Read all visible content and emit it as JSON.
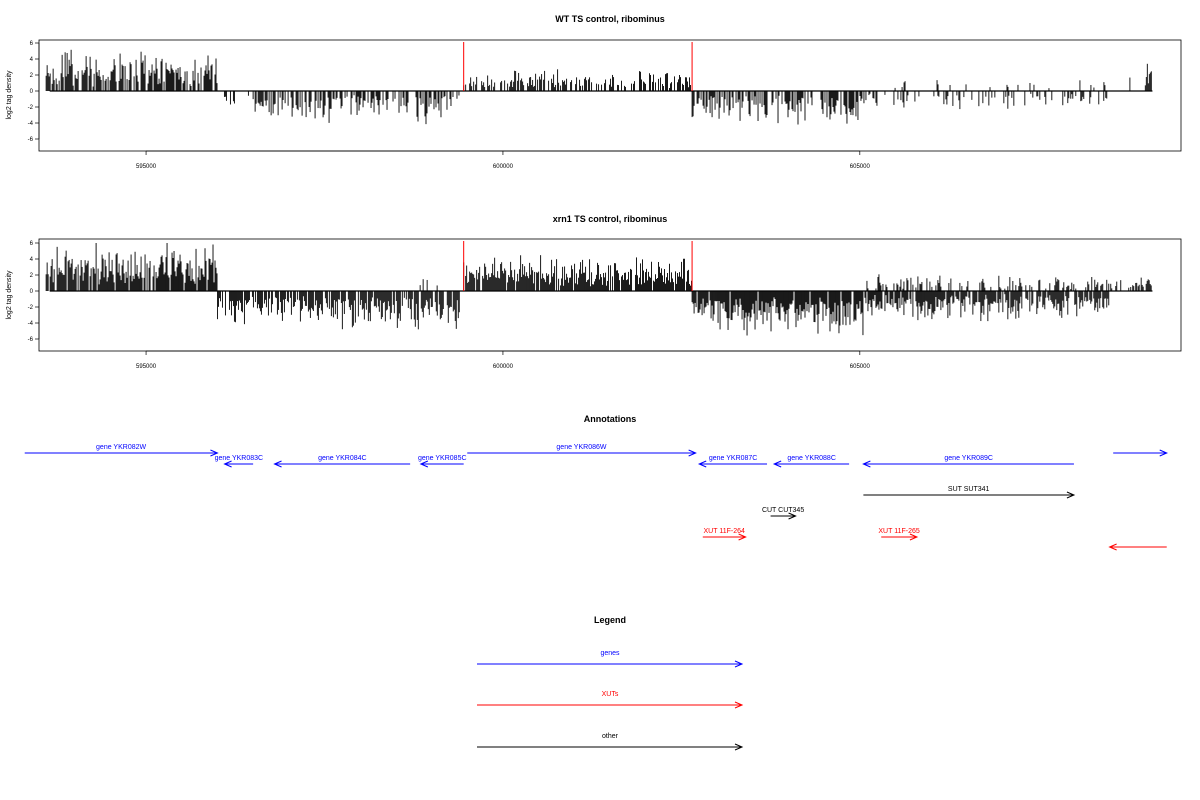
{
  "chart_data": [
    {
      "type": "bar",
      "title": "WT TS control, ribominus",
      "ylabel": "log2 tag density",
      "xlim": [
        593500,
        609500
      ],
      "ylim": [
        -7,
        7
      ],
      "yticks": [
        "6",
        "4",
        "2",
        "0",
        "-2",
        "-4",
        "-6"
      ],
      "xticks": [
        "595000",
        "600000",
        "605000"
      ],
      "xtick_values": [
        595000,
        600000,
        605000
      ],
      "bar_color": "#000000",
      "marker_color": "#ff0000",
      "markers": [
        599450,
        602650
      ],
      "segments": [
        {
          "from": 593600,
          "to": 596000,
          "sign": 1,
          "density": 0.75,
          "amp": 3.0,
          "max": 5.4
        },
        {
          "from": 596000,
          "to": 596500,
          "sign": -1,
          "density": 0.25,
          "amp": 1.2,
          "max": 2.8
        },
        {
          "from": 596500,
          "to": 599400,
          "sign": -1,
          "density": 0.6,
          "amp": 2.3,
          "max": 5.8
        },
        {
          "from": 599450,
          "to": 602650,
          "sign": 1,
          "density": 0.45,
          "amp": 1.6,
          "max": 3.6
        },
        {
          "from": 602650,
          "to": 605100,
          "sign": -1,
          "density": 0.7,
          "amp": 2.6,
          "max": 6.2
        },
        {
          "from": 605100,
          "to": 608500,
          "sign": -1,
          "density": 0.3,
          "amp": 1.5,
          "max": 4.5
        },
        {
          "from": 605200,
          "to": 608800,
          "sign": 1,
          "density": 0.08,
          "amp": 1.0,
          "max": 2.6
        },
        {
          "from": 609000,
          "to": 609100,
          "sign": 1,
          "density": 0.6,
          "amp": 2.2,
          "max": 3.4
        }
      ]
    },
    {
      "type": "bar",
      "title": "xrn1 TS control, ribominus",
      "ylabel": "log2 tag density",
      "xlim": [
        593500,
        609500
      ],
      "ylim": [
        -7,
        7
      ],
      "yticks": [
        "6",
        "4",
        "2",
        "0",
        "-2",
        "-4",
        "-6"
      ],
      "xticks": [
        "595000",
        "600000",
        "605000"
      ],
      "xtick_values": [
        595000,
        600000,
        605000
      ],
      "bar_color": "#000000",
      "marker_color": "#ff0000",
      "markers": [
        599450,
        602650
      ],
      "segments": [
        {
          "from": 593600,
          "to": 596000,
          "sign": 1,
          "density": 0.9,
          "amp": 3.8,
          "max": 6.0
        },
        {
          "from": 596000,
          "to": 599400,
          "sign": -1,
          "density": 0.8,
          "amp": 2.8,
          "max": 6.6
        },
        {
          "from": 598700,
          "to": 599300,
          "sign": 1,
          "density": 0.1,
          "amp": 1.2,
          "max": 2.2
        },
        {
          "from": 599450,
          "to": 602650,
          "sign": 1,
          "density": 0.9,
          "amp": 2.6,
          "max": 5.5
        },
        {
          "from": 602650,
          "to": 605100,
          "sign": -1,
          "density": 0.9,
          "amp": 3.2,
          "max": 6.8
        },
        {
          "from": 605100,
          "to": 608500,
          "sign": -1,
          "density": 0.8,
          "amp": 2.2,
          "max": 5.2
        },
        {
          "from": 605100,
          "to": 608900,
          "sign": 1,
          "density": 0.35,
          "amp": 1.2,
          "max": 3.0
        },
        {
          "from": 608900,
          "to": 609100,
          "sign": 1,
          "density": 0.6,
          "amp": 1.6,
          "max": 2.6
        }
      ]
    }
  ],
  "annotations": {
    "title": "Annotations",
    "features": [
      {
        "label": "gene YKR082W",
        "from": 593300,
        "to": 596000,
        "dir": "+",
        "row": 0,
        "color": "#0000ff"
      },
      {
        "label": "gene YKR083C",
        "from": 596100,
        "to": 596500,
        "dir": "-",
        "row": 1,
        "color": "#0000ff"
      },
      {
        "label": "gene YKR084C",
        "from": 596800,
        "to": 598700,
        "dir": "-",
        "row": 1,
        "color": "#0000ff"
      },
      {
        "label": "gene YKR085C",
        "from": 598850,
        "to": 599450,
        "dir": "-",
        "row": 1,
        "color": "#0000ff"
      },
      {
        "label": "gene YKR086W",
        "from": 599500,
        "to": 602700,
        "dir": "+",
        "row": 0,
        "color": "#0000ff"
      },
      {
        "label": "gene YKR087C",
        "from": 602750,
        "to": 603700,
        "dir": "-",
        "row": 1,
        "color": "#0000ff"
      },
      {
        "label": "gene YKR088C",
        "from": 603800,
        "to": 604850,
        "dir": "-",
        "row": 1,
        "color": "#0000ff"
      },
      {
        "label": "gene YKR089C",
        "from": 605050,
        "to": 608000,
        "dir": "-",
        "row": 1,
        "color": "#0000ff"
      },
      {
        "label": "",
        "from": 608550,
        "to": 609300,
        "dir": "+",
        "row": 0,
        "color": "#0000ff"
      },
      {
        "label": "SUT SUT341",
        "from": 605050,
        "to": 608000,
        "dir": "+",
        "row": 2,
        "color": "#000000"
      },
      {
        "label": "CUT CUT345",
        "from": 603750,
        "to": 604100,
        "dir": "+",
        "row": 3,
        "color": "#000000"
      },
      {
        "label": "XUT 11F-264",
        "from": 602800,
        "to": 603400,
        "dir": "+",
        "row": 4,
        "color": "#ff0000"
      },
      {
        "label": "XUT 11F-265",
        "from": 605300,
        "to": 605800,
        "dir": "+",
        "row": 4,
        "color": "#ff0000"
      },
      {
        "label": "",
        "from": 608500,
        "to": 609300,
        "dir": "-",
        "row": 5,
        "color": "#ff0000"
      }
    ]
  },
  "legend": {
    "title": "Legend",
    "items": [
      {
        "label": "genes",
        "color": "#0000ff"
      },
      {
        "label": "XUTs",
        "color": "#ff0000"
      },
      {
        "label": "other",
        "color": "#000000"
      }
    ]
  }
}
